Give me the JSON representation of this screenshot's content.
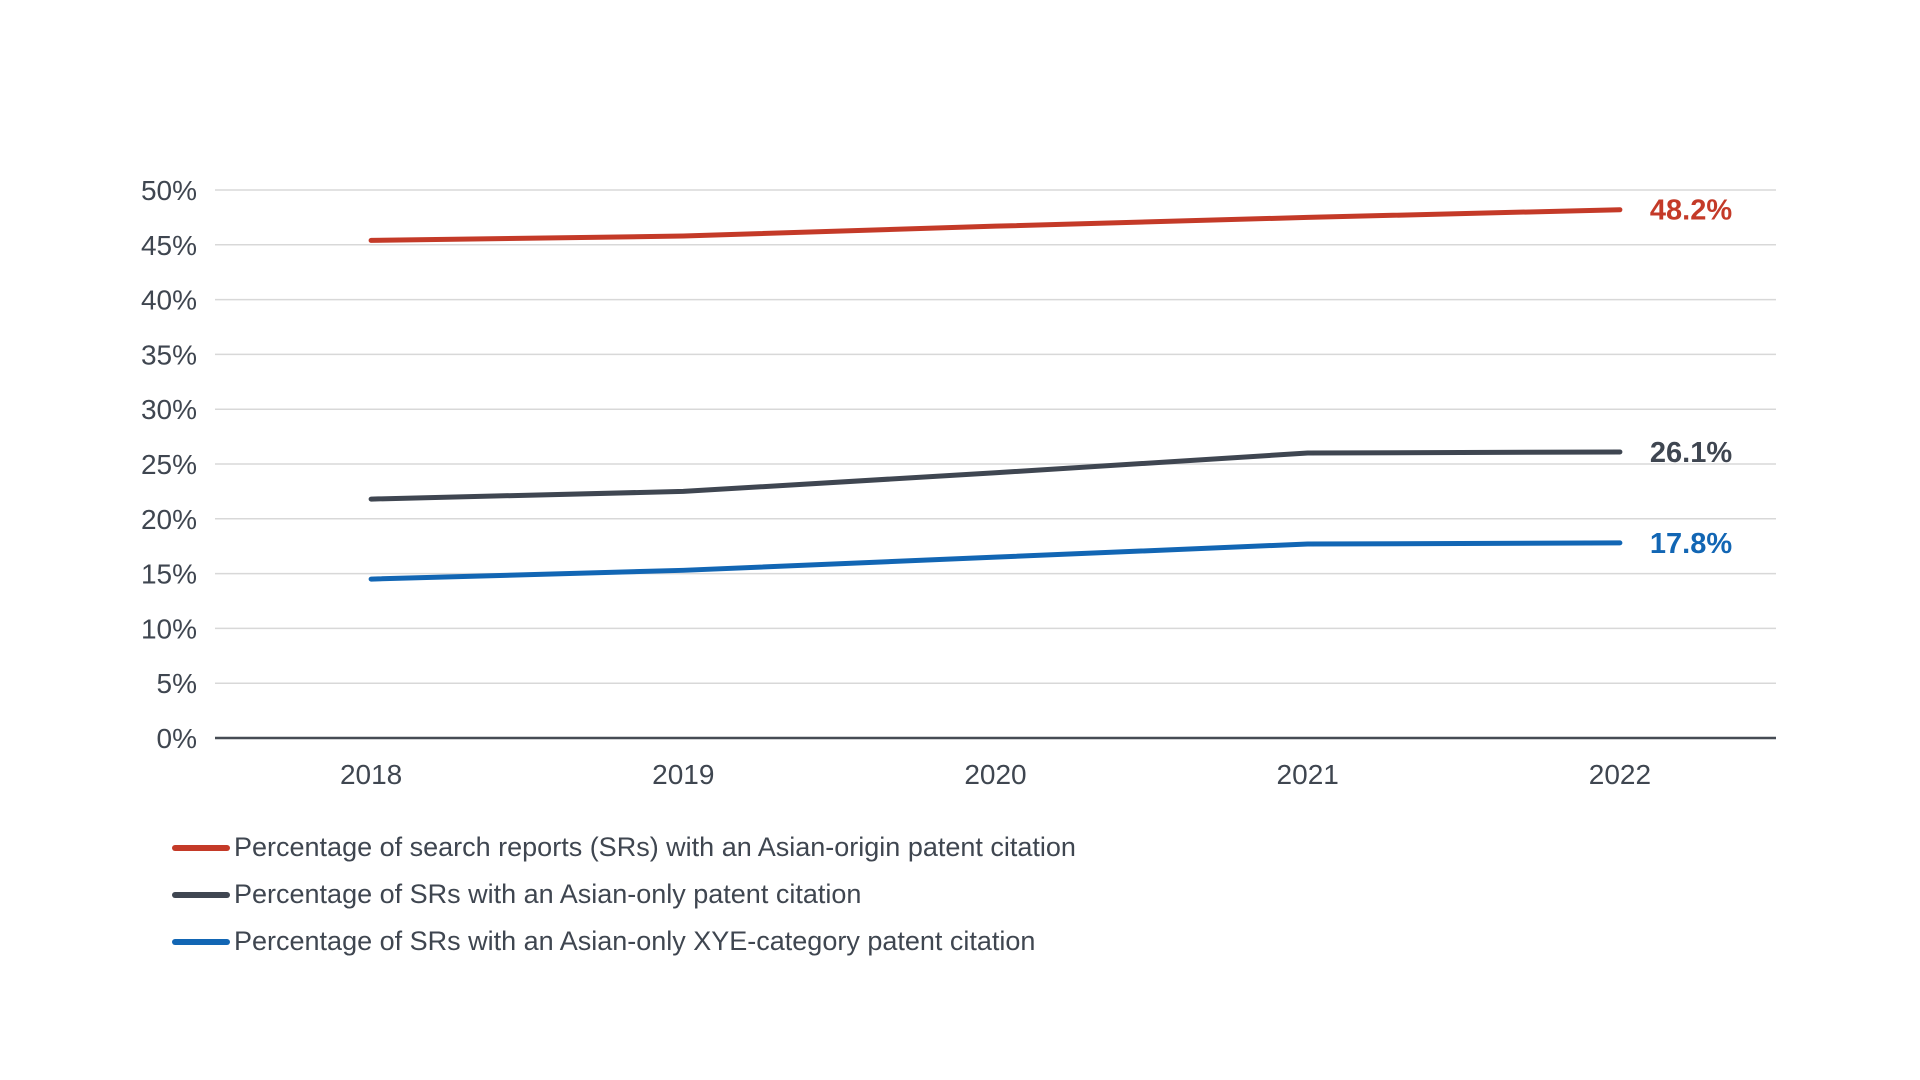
{
  "chart_data": {
    "type": "line",
    "title": "",
    "xlabel": "",
    "ylabel": "",
    "categories": [
      "2018",
      "2019",
      "2020",
      "2021",
      "2022"
    ],
    "series": [
      {
        "name": "Percentage of search reports (SRs) with an Asian-origin patent citation",
        "color": "#c43a28",
        "values": [
          45.4,
          45.8,
          46.7,
          47.5,
          48.2
        ],
        "end_label": "48.2%"
      },
      {
        "name": "Percentage of SRs with an Asian-only patent citation",
        "color": "#3f4651",
        "values": [
          21.8,
          22.5,
          24.2,
          26.0,
          26.1
        ],
        "end_label": "26.1%"
      },
      {
        "name": "Percentage of SRs with an Asian-only XYE-category patent citation",
        "color": "#1266b4",
        "values": [
          14.5,
          15.3,
          16.5,
          17.7,
          17.8
        ],
        "end_label": "17.8%"
      }
    ],
    "ylim": [
      0,
      50
    ],
    "y_tick_step": 5,
    "y_ticks": [
      "0%",
      "5%",
      "10%",
      "15%",
      "20%",
      "25%",
      "30%",
      "35%",
      "40%",
      "45%",
      "50%"
    ],
    "grid": true,
    "legend_position": "bottom-left"
  },
  "colors": {
    "background": "#ffffff",
    "axis_text": "#3f4650",
    "gridline": "#d8d8d8",
    "axis_line": "#464c54"
  }
}
